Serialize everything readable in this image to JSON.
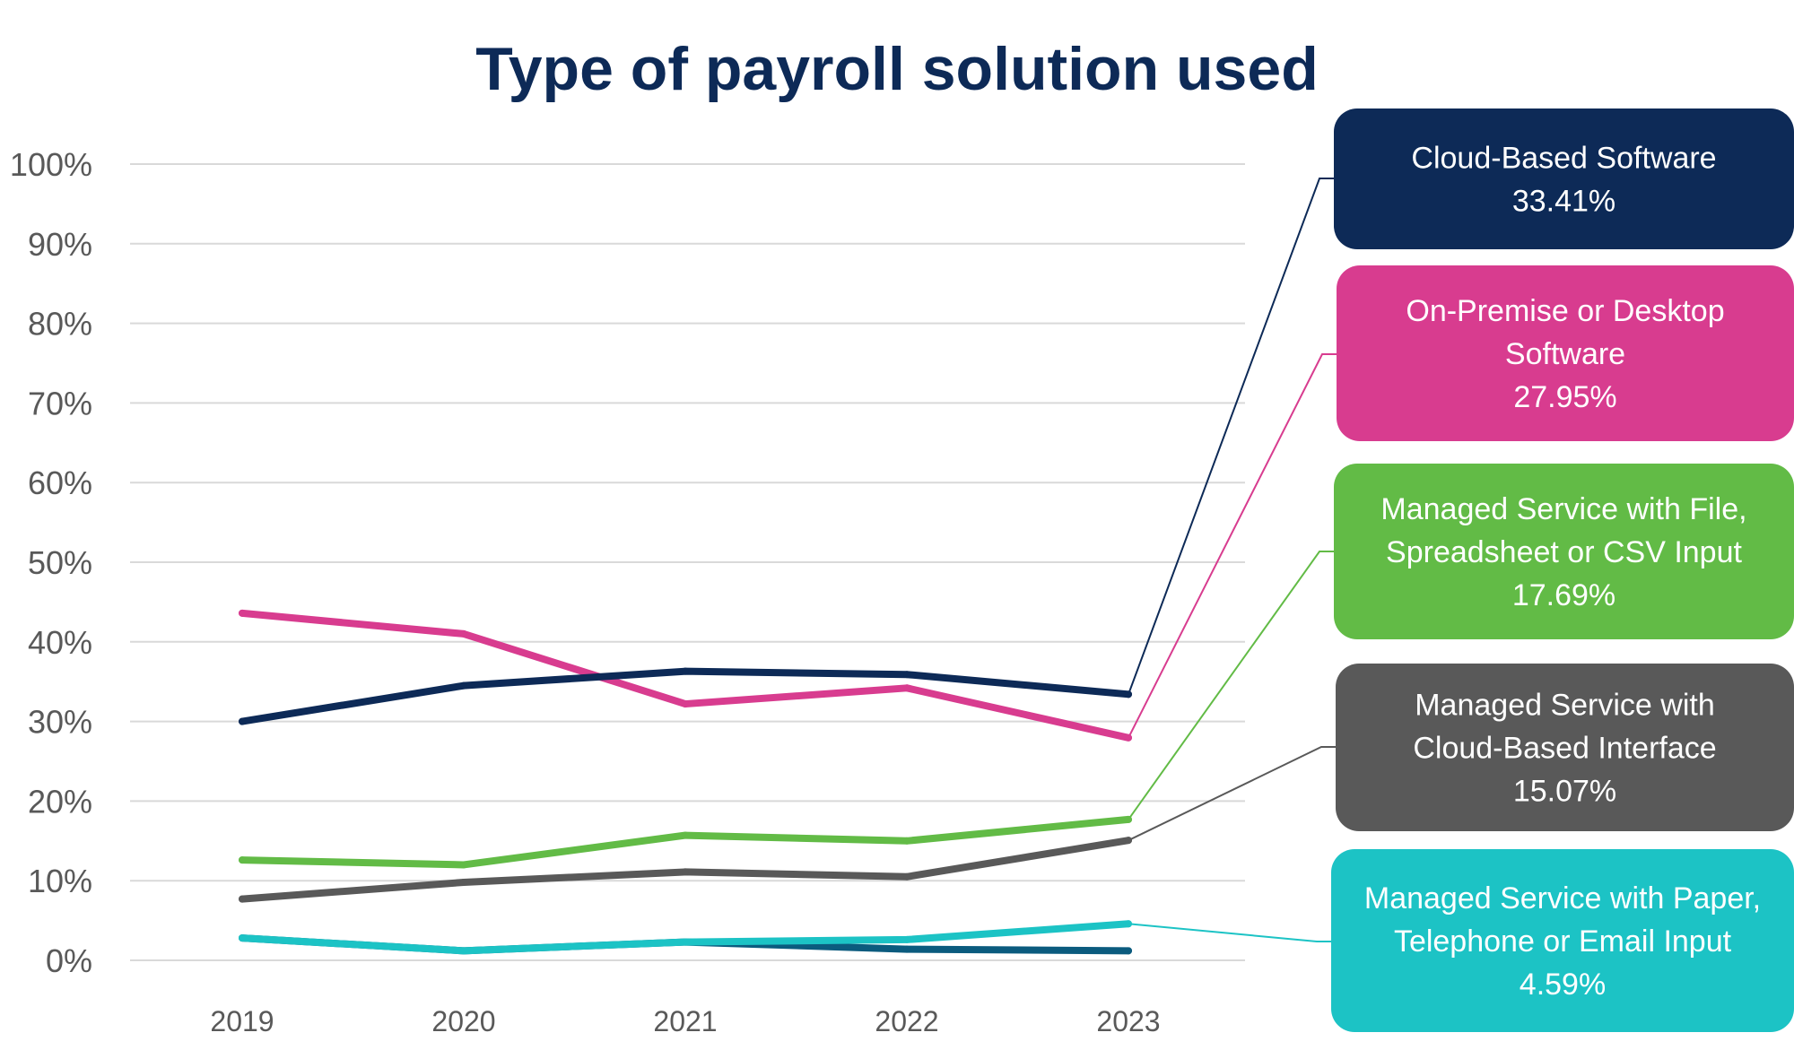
{
  "chart_data": {
    "type": "line",
    "title": "Type of payroll solution used",
    "xlabel": "",
    "ylabel": "",
    "x": [
      "2019",
      "2020",
      "2021",
      "2022",
      "2023"
    ],
    "ylim": [
      0,
      100
    ],
    "y_ticks": [
      "0%",
      "10%",
      "20%",
      "30%",
      "40%",
      "50%",
      "60%",
      "70%",
      "80%",
      "90%",
      "100%"
    ],
    "grid": true,
    "legend": "callouts on right",
    "series": [
      {
        "name": "Cloud-Based Software",
        "color": "#0d2a57",
        "values": [
          30.0,
          34.5,
          36.3,
          35.9,
          33.41
        ],
        "callout_lines": [
          "Cloud-Based Software",
          "33.41%"
        ]
      },
      {
        "name": "On-Premise or Desktop Software",
        "color": "#d83c8f",
        "values": [
          43.6,
          41.0,
          32.2,
          34.2,
          27.95
        ],
        "callout_lines": [
          "On-Premise or Desktop",
          "Software",
          "27.95%"
        ]
      },
      {
        "name": "Managed Service with File, Spreadsheet or CSV Input",
        "color": "#62bb46",
        "values": [
          12.6,
          12.0,
          15.7,
          15.0,
          17.69
        ],
        "callout_lines": [
          "Managed Service with File,",
          "Spreadsheet or CSV Input",
          "17.69%"
        ]
      },
      {
        "name": "Managed Service with Cloud-Based Interface",
        "color": "#595959",
        "values": [
          7.7,
          9.8,
          11.1,
          10.5,
          15.07
        ],
        "callout_lines": [
          "Managed Service with",
          "Cloud-Based Interface",
          "15.07%"
        ]
      },
      {
        "name": "Managed Service with Paper, Telephone or Email Input",
        "color": "#1cc3c5",
        "values": [
          2.8,
          1.2,
          2.3,
          2.6,
          4.59
        ],
        "callout_lines": [
          "Managed Service with Paper,",
          "Telephone or Email Input",
          "4.59%"
        ]
      },
      {
        "name": "",
        "color": "#0b5b7e",
        "values": [
          2.8,
          1.2,
          2.3,
          1.4,
          1.2
        ],
        "callout_lines": []
      }
    ]
  }
}
